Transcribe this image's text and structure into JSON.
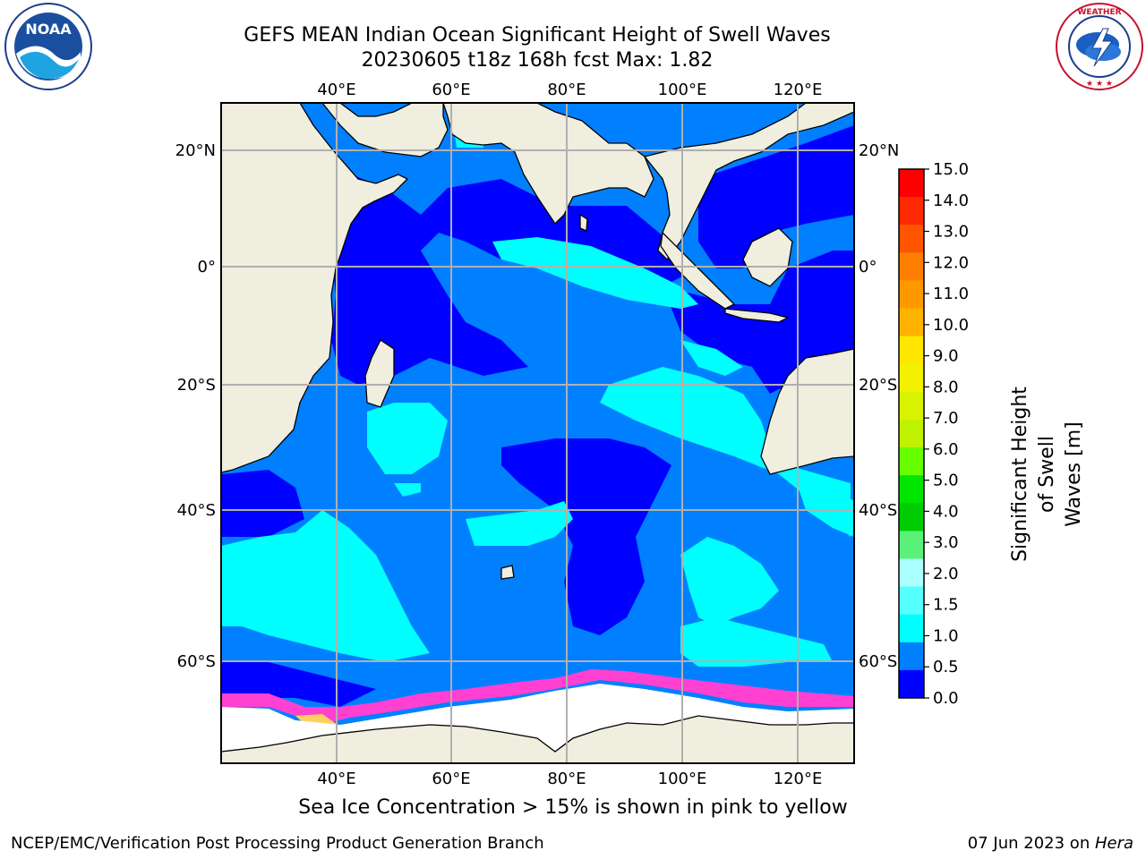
{
  "title_line1": "GEFS MEAN Indian Ocean Significant Height of Swell Waves",
  "title_line2": "20230605 t18z 168h fcst   Max: 1.82",
  "logos": {
    "left": {
      "name": "noaa-logo",
      "text": "NOAA",
      "ring_text": "NATIONAL OCEANIC AND ATMOSPHERIC ADMINISTRATION · U.S. DEPARTMENT OF COMMERCE"
    },
    "right": {
      "name": "national-weather-service-logo",
      "ring_text": "NATIONAL WEATHER SERVICE"
    }
  },
  "map": {
    "lon_ticks": [
      "40°E",
      "60°E",
      "80°E",
      "100°E",
      "120°E"
    ],
    "lat_ticks": [
      "20°N",
      "0°",
      "20°S",
      "40°S",
      "60°S"
    ],
    "gridlines": true,
    "colors": {
      "land": "#efeedf",
      "ice": "#ffffff",
      "ocean_low": "#0000ff",
      "ocean_mid": "#0080ff",
      "ocean_high": "#00ffff"
    }
  },
  "colorbar": {
    "title_line1": "Significant Height of Swell",
    "title_line2": "Waves [m]",
    "ticks": [
      "15.0",
      "14.0",
      "13.0",
      "12.0",
      "11.0",
      "10.0",
      "9.0",
      "8.0",
      "7.0",
      "6.0",
      "5.0",
      "4.0",
      "3.0",
      "2.0",
      "1.5",
      "1.0",
      "0.5",
      "0.0"
    ],
    "colors_top_to_bottom": [
      "#ff0000",
      "#ff2a00",
      "#ff5500",
      "#ff7f00",
      "#ff9900",
      "#ffb300",
      "#ffe600",
      "#f2f200",
      "#d9f200",
      "#bff200",
      "#66ff00",
      "#00e600",
      "#00cc00",
      "#5af07a",
      "#aaffff",
      "#55ffff",
      "#00ffff",
      "#0080ff",
      "#0000ff"
    ]
  },
  "note": "Sea Ice Concentration > 15% is shown in pink to yellow",
  "footer_left": "NCEP/EMC/Verification Post Processing Product Generation Branch",
  "footer_right_prefix": "07 Jun 2023 on ",
  "footer_right_machine": "Hera"
}
